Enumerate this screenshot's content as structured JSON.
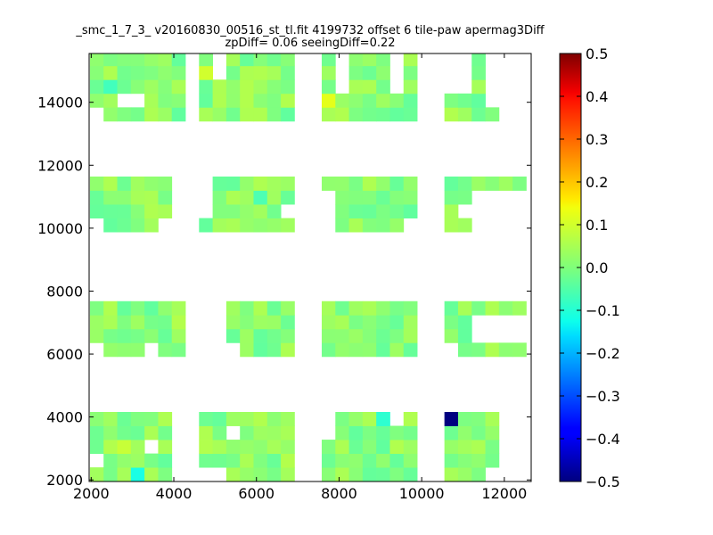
{
  "chart_data": {
    "type": "heatmap",
    "title_lines": [
      "_smc_1_7_3_ v20160830_00516_st_tl.fit 4199732 offset 6 tile-paw apermag3Diff",
      "zpDiff= 0.06 seeingDiff=0.22"
    ],
    "xlabel": "",
    "ylabel": "",
    "xlim": [
      1950,
      12650
    ],
    "ylim": [
      1950,
      15550
    ],
    "x_ticks": [
      2000,
      4000,
      6000,
      8000,
      10000,
      12000
    ],
    "y_ticks": [
      2000,
      4000,
      6000,
      8000,
      10000,
      12000,
      14000
    ],
    "colorbar": {
      "colormap": "jet",
      "vmin": -0.5,
      "vmax": 0.5,
      "ticks": [
        0.5,
        0.4,
        0.3,
        0.2,
        0.1,
        0.0,
        -0.1,
        -0.2,
        -0.3,
        -0.4,
        -0.5
      ],
      "tick_labels": [
        "0.5",
        "0.4",
        "0.3",
        "0.2",
        "0.1",
        "0.0",
        "−0.1",
        "−0.2",
        "−0.3",
        "−0.4",
        "−0.5"
      ]
    },
    "cell_size": [
      330,
      440
    ],
    "grid_x0": 1970,
    "grid_y0": 1960,
    "columns": 32,
    "rows": 31,
    "default_value": 0.01,
    "row_patterns": [
      "mmmmmm..........mmmmm..mmmmmmmmmmm...mmmmm",
      "mmmmmm...mm.....mmmmm..mmmmmmmmmmm...mmmmm",
      "mmmmmm..........mmmmm..mmmmmmmmmmm...mmmmm"
    ],
    "blocks": [
      {
        "x0": 2000,
        "x1": 3950,
        "y0": 2000,
        "y1": 4050
      },
      {
        "x0": 4650,
        "x1": 6950,
        "y0": 2000,
        "y1": 4050
      },
      {
        "x0": 7600,
        "x1": 10050,
        "y0": 2000,
        "y1": 4050
      },
      {
        "x0": 10700,
        "x1": 11950,
        "y0": 2000,
        "y1": 4050
      },
      {
        "x0": 2000,
        "x1": 4300,
        "y0": 5950,
        "y1": 7900
      },
      {
        "x0": 5300,
        "x1": 6950,
        "y0": 5950,
        "y1": 7900
      },
      {
        "x0": 7600,
        "x1": 10050,
        "y0": 5950,
        "y1": 7900
      },
      {
        "x0": 10700,
        "x1": 12650,
        "y0": 5950,
        "y1": 7900
      },
      {
        "x0": 2000,
        "x1": 3950,
        "y0": 9750,
        "y1": 11750
      },
      {
        "x0": 4650,
        "x1": 6950,
        "y0": 9750,
        "y1": 11750
      },
      {
        "x0": 7600,
        "x1": 10050,
        "y0": 9750,
        "y1": 11750
      },
      {
        "x0": 10700,
        "x1": 12650,
        "y0": 9750,
        "y1": 11750
      },
      {
        "x0": 2000,
        "x1": 4300,
        "y0": 13600,
        "y1": 15550
      },
      {
        "x0": 4650,
        "x1": 6950,
        "y0": 13600,
        "y1": 15550
      },
      {
        "x0": 7600,
        "x1": 10050,
        "y0": 13600,
        "y1": 15550
      },
      {
        "x0": 10700,
        "x1": 12650,
        "y0": 13600,
        "y1": 15550
      }
    ],
    "holes": [
      {
        "x0": 2000,
        "x1": 2350,
        "y0": 2500,
        "y1": 2950
      },
      {
        "x0": 3300,
        "x1": 3650,
        "y0": 2950,
        "y1": 3400
      },
      {
        "x0": 5300,
        "x1": 5650,
        "y0": 3400,
        "y1": 3800
      },
      {
        "x0": 4650,
        "x1": 5300,
        "y0": 2000,
        "y1": 2500
      },
      {
        "x0": 7600,
        "x1": 7950,
        "y0": 3400,
        "y1": 4050
      },
      {
        "x0": 9300,
        "x1": 9650,
        "y0": 3650,
        "y1": 4050
      },
      {
        "x0": 11650,
        "x1": 11950,
        "y0": 2000,
        "y1": 2500
      },
      {
        "x0": 3300,
        "x1": 3650,
        "y0": 5950,
        "y1": 6450
      },
      {
        "x0": 2000,
        "x1": 2350,
        "y0": 5950,
        "y1": 6350
      },
      {
        "x0": 5300,
        "x1": 5650,
        "y0": 5950,
        "y1": 6300
      },
      {
        "x0": 11350,
        "x1": 12650,
        "y0": 6350,
        "y1": 7400
      },
      {
        "x0": 10700,
        "x1": 11000,
        "y0": 5950,
        "y1": 6300
      },
      {
        "x0": 3650,
        "x1": 3950,
        "y0": 9750,
        "y1": 10150
      },
      {
        "x0": 2000,
        "x1": 2350,
        "y0": 9750,
        "y1": 10150
      },
      {
        "x0": 4650,
        "x1": 4950,
        "y0": 10300,
        "y1": 11750
      },
      {
        "x0": 6650,
        "x1": 6950,
        "y0": 10150,
        "y1": 10750
      },
      {
        "x0": 7600,
        "x1": 7950,
        "y0": 9750,
        "y1": 11100
      },
      {
        "x0": 9650,
        "x1": 10050,
        "y0": 9750,
        "y1": 10300
      },
      {
        "x0": 10700,
        "x1": 11000,
        "y0": 9750,
        "y1": 10050
      },
      {
        "x0": 11350,
        "x1": 12650,
        "y0": 10050,
        "y1": 11350
      },
      {
        "x0": 11000,
        "x1": 11350,
        "y0": 10500,
        "y1": 10800
      },
      {
        "x0": 2000,
        "x1": 2300,
        "y0": 13600,
        "y1": 13950
      },
      {
        "x0": 2700,
        "x1": 3300,
        "y0": 14000,
        "y1": 14400
      },
      {
        "x0": 5000,
        "x1": 5300,
        "y0": 14700,
        "y1": 15550
      },
      {
        "x0": 7950,
        "x1": 8250,
        "y0": 14500,
        "y1": 15550
      },
      {
        "x0": 9300,
        "x1": 9650,
        "y0": 14300,
        "y1": 15550
      },
      {
        "x0": 10700,
        "x1": 11350,
        "y0": 14500,
        "y1": 15550
      },
      {
        "x0": 11650,
        "x1": 12650,
        "y0": 14000,
        "y1": 15550
      },
      {
        "x0": 12000,
        "x1": 12650,
        "y0": 13600,
        "y1": 14000
      }
    ],
    "special_cells": [
      {
        "x": 10850,
        "y": 3820,
        "value": -0.5
      },
      {
        "x": 10850,
        "y": 5740,
        "value": 0.08
      },
      {
        "x": 11170,
        "y": 15420,
        "value": 0.1
      },
      {
        "x": 4860,
        "y": 14900,
        "value": 0.08
      },
      {
        "x": 7730,
        "y": 14100,
        "value": 0.1
      },
      {
        "x": 2650,
        "y": 3080,
        "value": 0.07
      },
      {
        "x": 3190,
        "y": 2080,
        "value": -0.1
      },
      {
        "x": 9200,
        "y": 3900,
        "value": -0.08
      },
      {
        "x": 4230,
        "y": 7200,
        "value": 0.05
      },
      {
        "x": 6900,
        "y": 2500,
        "value": 0.05
      },
      {
        "x": 3190,
        "y": 13900,
        "value": -0.07
      },
      {
        "x": 2450,
        "y": 14600,
        "value": -0.06
      },
      {
        "x": 6400,
        "y": 11700,
        "value": -0.06
      },
      {
        "x": 5970,
        "y": 10800,
        "value": -0.05
      },
      {
        "x": 11050,
        "y": 11700,
        "value": -0.06
      },
      {
        "x": 11600,
        "y": 6600,
        "value": -0.07
      },
      {
        "x": 11550,
        "y": 14600,
        "value": 0.03
      }
    ]
  }
}
